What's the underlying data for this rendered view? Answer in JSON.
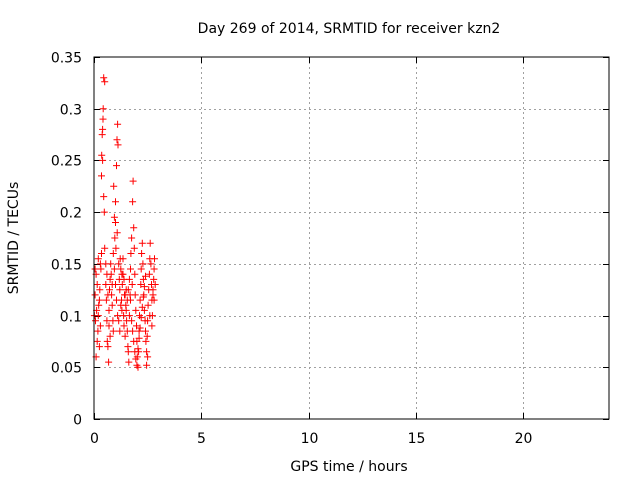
{
  "chart_data": {
    "type": "scatter",
    "title": "Day 269 of 2014, SRMTID for receiver kzn2",
    "xlabel": "GPS time / hours",
    "ylabel": "SRMTID / TECUs",
    "xlim": [
      0,
      24
    ],
    "ylim": [
      0,
      0.35
    ],
    "xticks": [
      0,
      5,
      10,
      15,
      20
    ],
    "xtick_labels": [
      "0",
      "5",
      "10",
      "15",
      "20"
    ],
    "yticks": [
      0,
      0.05,
      0.1,
      0.15,
      0.2,
      0.25,
      0.3,
      0.35
    ],
    "ytick_labels": [
      "0",
      "0.05",
      "0.1",
      "0.15",
      "0.2",
      "0.25",
      "0.3",
      "0.35"
    ],
    "grid": true,
    "marker": "+",
    "color": "#ff0000",
    "series": [
      {
        "name": "SRMTID",
        "points": [
          [
            0.05,
            0.12
          ],
          [
            0.07,
            0.095
          ],
          [
            0.1,
            0.14
          ],
          [
            0.12,
            0.105
          ],
          [
            0.15,
            0.13
          ],
          [
            0.18,
            0.085
          ],
          [
            0.2,
            0.155
          ],
          [
            0.22,
            0.11
          ],
          [
            0.25,
            0.07
          ],
          [
            0.27,
            0.125
          ],
          [
            0.3,
            0.09
          ],
          [
            0.32,
            0.145
          ],
          [
            0.35,
            0.235
          ],
          [
            0.36,
            0.255
          ],
          [
            0.38,
            0.275
          ],
          [
            0.4,
            0.28
          ],
          [
            0.42,
            0.29
          ],
          [
            0.43,
            0.3
          ],
          [
            0.45,
            0.33
          ],
          [
            0.5,
            0.326
          ],
          [
            0.4,
            0.25
          ],
          [
            0.45,
            0.215
          ],
          [
            0.48,
            0.2
          ],
          [
            0.5,
            0.165
          ],
          [
            0.55,
            0.13
          ],
          [
            0.58,
            0.115
          ],
          [
            0.6,
            0.095
          ],
          [
            0.62,
            0.075
          ],
          [
            0.65,
            0.07
          ],
          [
            0.68,
            0.055
          ],
          [
            0.7,
            0.105
          ],
          [
            0.72,
            0.125
          ],
          [
            0.75,
            0.135
          ],
          [
            0.78,
            0.15
          ],
          [
            0.8,
            0.14
          ],
          [
            0.82,
            0.12
          ],
          [
            0.85,
            0.11
          ],
          [
            0.88,
            0.095
          ],
          [
            0.9,
            0.085
          ],
          [
            0.92,
            0.225
          ],
          [
            0.95,
            0.195
          ],
          [
            0.97,
            0.175
          ],
          [
            1.0,
            0.19
          ],
          [
            1.02,
            0.165
          ],
          [
            1.05,
            0.245
          ],
          [
            1.07,
            0.27
          ],
          [
            1.1,
            0.285
          ],
          [
            1.12,
            0.265
          ],
          [
            1.0,
            0.21
          ],
          [
            1.08,
            0.18
          ],
          [
            1.15,
            0.15
          ],
          [
            1.18,
            0.135
          ],
          [
            1.2,
            0.125
          ],
          [
            1.22,
            0.155
          ],
          [
            1.25,
            0.145
          ],
          [
            1.28,
            0.115
          ],
          [
            1.3,
            0.105
          ],
          [
            1.32,
            0.13
          ],
          [
            1.35,
            0.14
          ],
          [
            1.38,
            0.1
          ],
          [
            1.4,
            0.09
          ],
          [
            1.42,
            0.12
          ],
          [
            1.45,
            0.08
          ],
          [
            1.48,
            0.11
          ],
          [
            1.5,
            0.125
          ],
          [
            1.52,
            0.095
          ],
          [
            1.55,
            0.085
          ],
          [
            1.58,
            0.07
          ],
          [
            1.6,
            0.065
          ],
          [
            1.62,
            0.055
          ],
          [
            1.65,
            0.1
          ],
          [
            1.68,
            0.12
          ],
          [
            1.7,
            0.145
          ],
          [
            1.72,
            0.16
          ],
          [
            1.75,
            0.175
          ],
          [
            1.78,
            0.13
          ],
          [
            1.8,
            0.21
          ],
          [
            1.82,
            0.23
          ],
          [
            1.85,
            0.185
          ],
          [
            1.88,
            0.165
          ],
          [
            1.9,
            0.14
          ],
          [
            1.92,
            0.12
          ],
          [
            1.95,
            0.105
          ],
          [
            1.98,
            0.09
          ],
          [
            2.0,
            0.075
          ],
          [
            2.02,
            0.06
          ],
          [
            2.05,
            0.05
          ],
          [
            2.08,
            0.065
          ],
          [
            2.1,
            0.085
          ],
          [
            2.12,
            0.1
          ],
          [
            2.15,
            0.115
          ],
          [
            2.18,
            0.13
          ],
          [
            2.2,
            0.145
          ],
          [
            2.22,
            0.16
          ],
          [
            2.25,
            0.17
          ],
          [
            2.28,
            0.15
          ],
          [
            2.3,
            0.135
          ],
          [
            2.32,
            0.12
          ],
          [
            2.35,
            0.105
          ],
          [
            2.38,
            0.095
          ],
          [
            2.4,
            0.085
          ],
          [
            2.42,
            0.075
          ],
          [
            2.45,
            0.065
          ],
          [
            2.48,
            0.08
          ],
          [
            2.5,
            0.095
          ],
          [
            2.52,
            0.11
          ],
          [
            2.55,
            0.125
          ],
          [
            2.58,
            0.14
          ],
          [
            2.6,
            0.155
          ],
          [
            2.62,
            0.17
          ],
          [
            2.65,
            0.15
          ],
          [
            2.68,
            0.13
          ],
          [
            2.7,
            0.115
          ],
          [
            2.72,
            0.1
          ],
          [
            2.75,
            0.12
          ],
          [
            2.78,
            0.135
          ],
          [
            2.8,
            0.145
          ],
          [
            2.82,
            0.155
          ],
          [
            2.5,
            0.06
          ],
          [
            2.45,
            0.052
          ],
          [
            0.1,
            0.06
          ],
          [
            0.15,
            0.075
          ],
          [
            0.2,
            0.1
          ],
          [
            0.25,
            0.115
          ],
          [
            0.3,
            0.15
          ],
          [
            0.35,
            0.16
          ],
          [
            0.55,
            0.15
          ],
          [
            0.6,
            0.14
          ],
          [
            0.65,
            0.12
          ],
          [
            0.7,
            0.09
          ],
          [
            0.75,
            0.08
          ],
          [
            0.85,
            0.13
          ],
          [
            0.9,
            0.16
          ],
          [
            0.95,
            0.145
          ],
          [
            1.0,
            0.13
          ],
          [
            1.05,
            0.115
          ],
          [
            1.1,
            0.1
          ],
          [
            1.15,
            0.095
          ],
          [
            1.2,
            0.085
          ],
          [
            1.25,
            0.11
          ],
          [
            1.3,
            0.14
          ],
          [
            1.35,
            0.155
          ],
          [
            1.4,
            0.135
          ],
          [
            1.45,
            0.12
          ],
          [
            1.5,
            0.105
          ],
          [
            1.55,
            0.115
          ],
          [
            1.6,
            0.125
          ],
          [
            1.65,
            0.135
          ],
          [
            1.7,
            0.115
          ],
          [
            1.75,
            0.095
          ],
          [
            1.8,
            0.085
          ],
          [
            1.85,
            0.075
          ],
          [
            1.9,
            0.065
          ],
          [
            1.95,
            0.058
          ],
          [
            2.0,
            0.052
          ],
          [
            2.05,
            0.068
          ],
          [
            2.1,
            0.078
          ],
          [
            2.15,
            0.088
          ],
          [
            2.2,
            0.098
          ],
          [
            2.25,
            0.108
          ],
          [
            2.3,
            0.118
          ],
          [
            2.35,
            0.128
          ],
          [
            2.4,
            0.138
          ],
          [
            2.6,
            0.1
          ],
          [
            2.7,
            0.09
          ],
          [
            2.75,
            0.125
          ],
          [
            2.8,
            0.115
          ],
          [
            2.85,
            0.13
          ],
          [
            0.02,
            0.1
          ],
          [
            0.05,
            0.145
          ]
        ]
      }
    ]
  }
}
